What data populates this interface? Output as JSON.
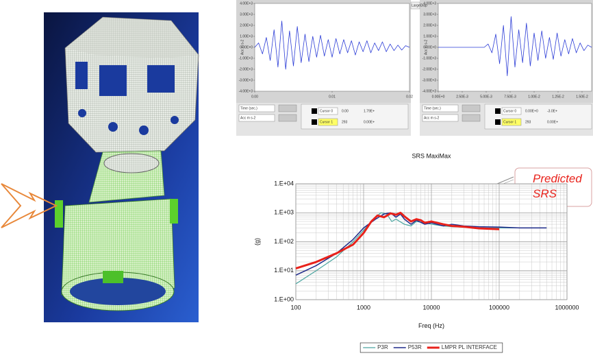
{
  "tab": "LargeDisp",
  "controls": [
    {
      "x_label": "Time (sec.)",
      "y_label": "Acc m s-2",
      "cursors": [
        [
          "Cursor 0",
          "0.00",
          "1.79E+"
        ],
        [
          "Cursor 1",
          "293",
          "0.00E+"
        ]
      ]
    },
    {
      "x_label": "Time (sec.)",
      "y_label": "Acc m s-2",
      "cursors": [
        [
          "Cursor 0",
          "0.00E+0",
          "-3.0E+"
        ],
        [
          "Cursor 1",
          "293",
          "0.00E+"
        ]
      ]
    }
  ],
  "chart_data": [
    {
      "type": "line",
      "xlabel": "Time (sec.)",
      "ylabel": "Acc m s-2",
      "x": [
        0,
        0.0005,
        0.001,
        0.0015,
        0.002,
        0.0025,
        0.003,
        0.0035,
        0.004,
        0.0045,
        0.005,
        0.0055,
        0.006,
        0.0065,
        0.007,
        0.0075,
        0.008,
        0.0085,
        0.009,
        0.0095,
        0.01,
        0.0105,
        0.011,
        0.0115,
        0.012,
        0.0125,
        0.013,
        0.0135,
        0.014,
        0.0145,
        0.015,
        0.0155,
        0.016,
        0.0165,
        0.017,
        0.0175,
        0.018,
        0.0185,
        0.019,
        0.0195,
        0.02
      ],
      "series": [
        {
          "color": "#2a3bd6",
          "values": [
            0,
            400,
            -600,
            900,
            -1200,
            1600,
            -1800,
            2400,
            -2000,
            1500,
            -1700,
            1900,
            -1400,
            1200,
            -1300,
            1000,
            -900,
            1100,
            -800,
            700,
            -900,
            800,
            -600,
            700,
            -500,
            600,
            -700,
            500,
            -400,
            600,
            -500,
            400,
            -300,
            500,
            -400,
            300,
            -300,
            200,
            -250,
            150,
            0
          ]
        }
      ],
      "xlim": [
        0,
        0.02
      ],
      "xticks": [
        {
          "value": 0,
          "label": "0.00"
        },
        0.01,
        0.02
      ],
      "ylim": [
        -4000,
        4000
      ],
      "yticks": [
        {
          "value": 4000,
          "label": "4.00E+3"
        },
        {
          "value": 3000,
          "label": "3.00E+3"
        },
        {
          "value": 2000,
          "label": "2.00E+3"
        },
        {
          "value": 1000,
          "label": "1.00E+3"
        },
        {
          "value": 0,
          "label": "0.00E+0"
        },
        {
          "value": -1000,
          "label": "-1.00E+3"
        },
        {
          "value": -2000,
          "label": "-2.00E+3"
        },
        {
          "value": -3000,
          "label": "-3.00E+3"
        },
        {
          "value": -4000,
          "label": "-4.00E+3"
        }
      ],
      "grid": false
    },
    {
      "type": "line",
      "xlabel": "Time (sec.)",
      "ylabel": "Acc m s-2",
      "x": [
        0,
        0.0004,
        0.0008,
        0.0012,
        0.0016,
        0.002,
        0.0024,
        0.0028,
        0.0032,
        0.0036,
        0.004,
        0.0044,
        0.0048,
        0.0052,
        0.0056,
        0.006,
        0.0064,
        0.0068,
        0.0072,
        0.0076,
        0.008,
        0.0084,
        0.0088,
        0.0092,
        0.0096,
        0.01,
        0.0104,
        0.0108,
        0.0112,
        0.0116,
        0.012,
        0.0124,
        0.0128,
        0.0132,
        0.0136,
        0.014,
        0.0144,
        0.0148,
        0.0152,
        0.0156,
        0.016
      ],
      "series": [
        {
          "color": "#2a3bd6",
          "values": [
            0,
            0,
            0,
            0,
            0,
            0,
            0,
            0,
            0,
            0,
            0,
            0,
            0,
            300,
            -500,
            1200,
            -1500,
            2000,
            -2600,
            2800,
            -1800,
            1600,
            -1400,
            2200,
            -1700,
            1300,
            -1200,
            1500,
            -1000,
            900,
            -1100,
            1300,
            -800,
            700,
            -600,
            800,
            -500,
            400,
            -300,
            200,
            0
          ]
        }
      ],
      "xlim": [
        0,
        0.016
      ],
      "xticks": [
        {
          "value": 0,
          "label": "0.00E+0"
        },
        {
          "value": 0.0025,
          "label": "2.50E-3"
        },
        {
          "value": 0.005,
          "label": "5.00E-3"
        },
        {
          "value": 0.0075,
          "label": "7.50E-3"
        },
        {
          "value": 0.01,
          "label": "1.00E-2"
        },
        {
          "value": 0.0125,
          "label": "1.25E-2"
        },
        {
          "value": 0.015,
          "label": "1.50E-2"
        }
      ],
      "ylim": [
        -4000,
        4000
      ],
      "yticks": [
        {
          "value": 4000,
          "label": "4.00E+3"
        },
        {
          "value": 3000,
          "label": "3.00E+3"
        },
        {
          "value": 2000,
          "label": "2.00E+3"
        },
        {
          "value": 1000,
          "label": "1.00E+3"
        },
        {
          "value": 0,
          "label": "0.00E+0"
        },
        {
          "value": -1000,
          "label": "-1.00E+3"
        },
        {
          "value": -2000,
          "label": "-2.00E+3"
        },
        {
          "value": -3000,
          "label": "-3.00E+3"
        },
        {
          "value": -4000,
          "label": "-4.00E+3"
        }
      ],
      "grid": false
    },
    {
      "type": "line",
      "title": "SRS MaxiMax",
      "xlabel": "Freq (Hz)",
      "ylabel": "(g)",
      "annotation": "Predicted SRS",
      "xlog": true,
      "ylog": true,
      "grid": true,
      "minor_grid": true,
      "legend": "bottom",
      "xlim": [
        100,
        1000000
      ],
      "xticks": [
        100,
        1000,
        10000,
        100000,
        1000000
      ],
      "ylim": [
        1,
        10000
      ],
      "yticks": [
        {
          "value": 1,
          "label": "1.E+00"
        },
        {
          "value": 10,
          "label": "1.E+01"
        },
        {
          "value": 100,
          "label": "1.E+02"
        },
        {
          "value": 1000,
          "label": "1.E+03"
        },
        {
          "value": 10000,
          "label": "1.E+04"
        }
      ],
      "series": [
        {
          "name": "P3R",
          "color": "#4aa5a0",
          "width": 1.2,
          "x": [
            100,
            200,
            400,
            700,
            1000,
            1500,
            1800,
            2200,
            2600,
            3000,
            4000,
            5000,
            6000,
            8000,
            10000,
            15000,
            20000,
            30000,
            50000,
            100000,
            200000,
            500000
          ],
          "values": [
            3.5,
            10,
            30,
            100,
            250,
            700,
            1000,
            900,
            500,
            600,
            400,
            350,
            500,
            450,
            400,
            350,
            330,
            320,
            300,
            300,
            300,
            300
          ]
        },
        {
          "name": "P53R",
          "color": "#1f2a8a",
          "width": 1.5,
          "x": [
            100,
            200,
            400,
            700,
            1000,
            1500,
            2000,
            2500,
            3000,
            3500,
            4000,
            5000,
            6000,
            8000,
            10000,
            15000,
            20000,
            30000,
            50000,
            100000,
            200000,
            500000
          ],
          "values": [
            7,
            15,
            40,
            120,
            300,
            600,
            900,
            1000,
            700,
            900,
            600,
            400,
            550,
            400,
            450,
            350,
            400,
            350,
            330,
            320,
            300,
            300
          ]
        },
        {
          "name": "LMPR PL INTERFACE",
          "color": "#e8221b",
          "width": 3,
          "x": [
            100,
            200,
            400,
            700,
            1000,
            1300,
            1600,
            2000,
            2500,
            3000,
            3500,
            4000,
            5000,
            6000,
            7000,
            8000,
            10000,
            15000,
            20000,
            30000,
            50000,
            100000
          ],
          "values": [
            12,
            20,
            40,
            80,
            200,
            500,
            800,
            700,
            950,
            850,
            1000,
            750,
            500,
            600,
            550,
            450,
            500,
            400,
            350,
            330,
            290,
            270
          ]
        }
      ]
    }
  ]
}
